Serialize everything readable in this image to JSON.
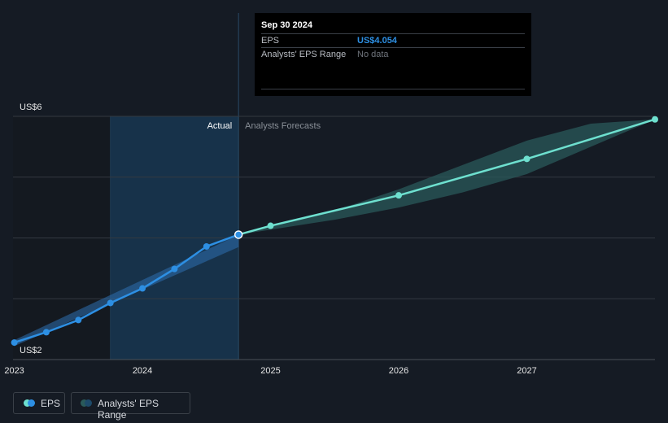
{
  "tooltip": {
    "date": "Sep 30 2024",
    "eps_label": "EPS",
    "eps_value": "US$4.054",
    "range_label": "Analysts' EPS Range",
    "range_value": "No data"
  },
  "legend": {
    "eps": "EPS",
    "range": "Analysts' EPS Range"
  },
  "colors": {
    "background": "#151b24",
    "actual_line": "#2d8fe3",
    "forecast_line": "#6ee0cf",
    "range_band": "#2a5a5a",
    "highlight_region": "#17324a",
    "eps_value": "#2d8fe3"
  },
  "chart_data": {
    "type": "line",
    "title": "",
    "xlabel": "",
    "ylabel": "",
    "ylim": [
      2,
      6
    ],
    "xlim": [
      2022.99,
      2028.0
    ],
    "y_tick_labels": [
      "US$2",
      "US$6"
    ],
    "x_ticks": [
      2023,
      2024,
      2025,
      2026,
      2027
    ],
    "x_tick_labels": [
      "2023",
      "2024",
      "2025",
      "2026",
      "2027"
    ],
    "actual_label": "Actual",
    "forecast_label": "Analysts Forecasts",
    "divider_x": 2024.75,
    "highlight_start_x": 2023.75,
    "grid": true,
    "legend_position": "bottom-left",
    "series": [
      {
        "name": "EPS",
        "kind": "actual",
        "x": [
          2023.0,
          2023.25,
          2023.5,
          2023.75,
          2024.0,
          2024.25,
          2024.5,
          2024.75
        ],
        "y": [
          2.28,
          2.45,
          2.65,
          2.93,
          3.17,
          3.49,
          3.86,
          4.054
        ]
      },
      {
        "name": "EPS Forecast",
        "kind": "forecast",
        "x": [
          2024.75,
          2025.0,
          2026.0,
          2027.0,
          2028.0
        ],
        "y": [
          4.054,
          4.2,
          4.7,
          5.3,
          5.95
        ]
      }
    ],
    "range_band_actual": {
      "x": [
        2023.0,
        2024.75
      ],
      "low": [
        2.22,
        3.85
      ],
      "high": [
        2.32,
        4.05
      ]
    },
    "range_band_forecast": {
      "x": [
        2024.75,
        2025.5,
        2026.0,
        2026.5,
        2027.0,
        2027.5,
        2028.0
      ],
      "low": [
        4.054,
        4.3,
        4.5,
        4.75,
        5.05,
        5.5,
        5.95
      ],
      "high": [
        4.054,
        4.45,
        4.8,
        5.2,
        5.6,
        5.88,
        5.95
      ]
    }
  }
}
